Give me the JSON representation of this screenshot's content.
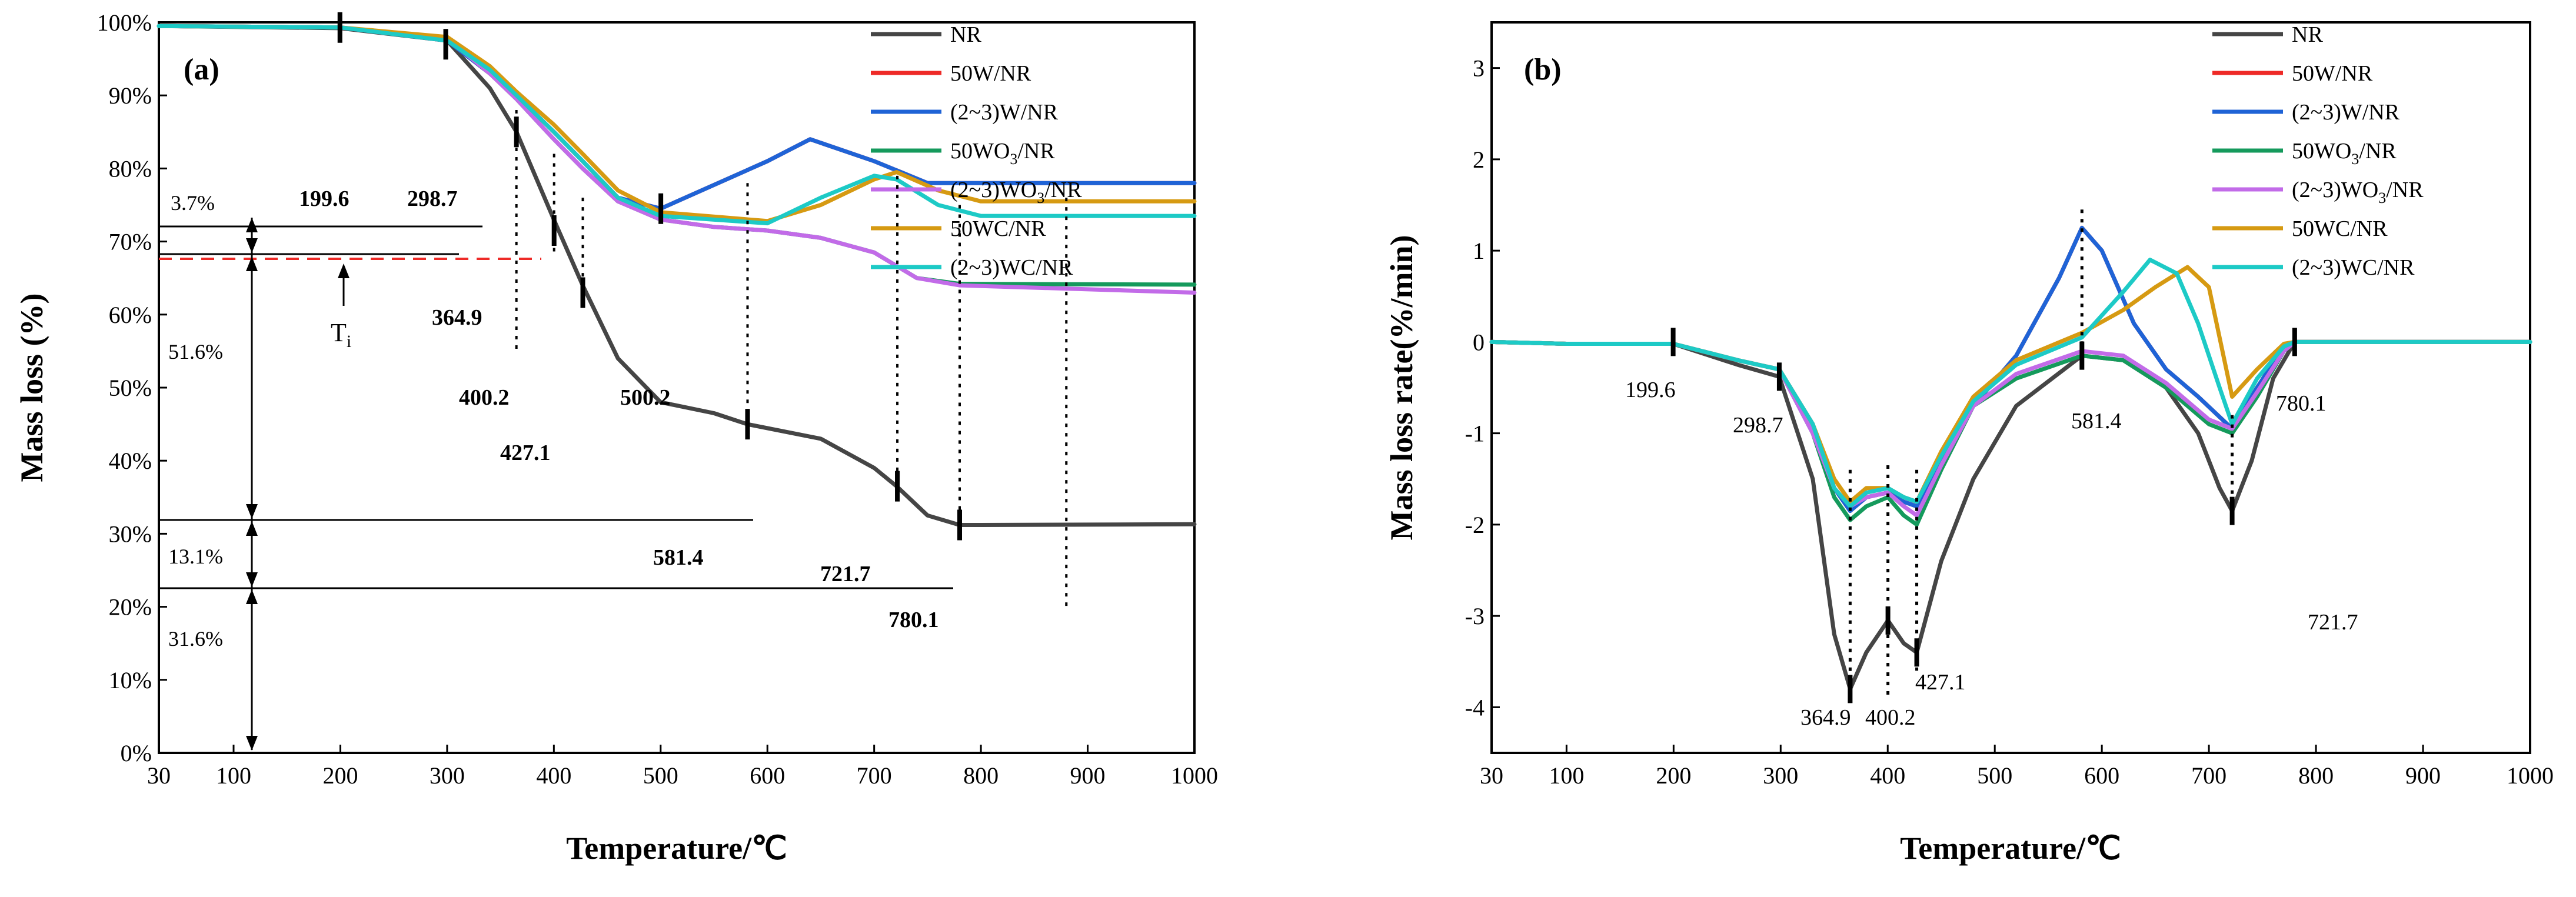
{
  "chart_data": [
    {
      "type": "line",
      "panel_label": "(a)",
      "xlabel": "Temperature/℃",
      "ylabel": "Mass loss (%)",
      "xlim": [
        30,
        1000
      ],
      "ylim": [
        0,
        100
      ],
      "x_ticks": [
        30,
        100,
        200,
        300,
        400,
        500,
        600,
        700,
        800,
        900,
        1000
      ],
      "y_ticks": [
        0,
        10,
        20,
        30,
        40,
        50,
        60,
        70,
        80,
        90,
        100
      ],
      "y_tick_labels": [
        "0%",
        "10%",
        "20%",
        "30%",
        "40%",
        "50%",
        "60%",
        "70%",
        "80%",
        "90%",
        "100%"
      ],
      "legend_position": "top-right",
      "series": [
        {
          "name": "NR",
          "color": "#454545",
          "x": [
            30,
            200,
            300,
            340,
            365,
            400,
            427,
            460,
            500,
            550,
            581,
            650,
            700,
            721,
            750,
            780,
            800,
            1000
          ],
          "values": [
            99.5,
            99.2,
            97.5,
            91,
            85,
            73,
            64,
            54,
            48,
            46.5,
            45,
            43,
            39,
            36.5,
            32.5,
            31.2,
            31.2,
            31.3
          ]
        },
        {
          "name": "50W/NR",
          "color": "#ee2a27",
          "x": [
            30,
            200,
            300,
            340,
            365,
            400,
            427,
            460,
            500,
            600,
            640,
            700,
            750,
            1000
          ],
          "values": [
            99.5,
            99.3,
            97.5,
            93,
            90,
            85,
            81,
            76,
            74.5,
            81,
            84,
            81,
            78,
            78
          ]
        },
        {
          "name": "(2~3)W/NR",
          "color": "#1f63d6",
          "x": [
            30,
            200,
            300,
            340,
            365,
            400,
            427,
            460,
            500,
            600,
            640,
            700,
            750,
            1000
          ],
          "values": [
            99.5,
            99.3,
            97.5,
            93,
            90,
            85,
            81,
            76,
            74.5,
            81,
            84,
            81,
            78,
            78
          ]
        },
        {
          "name": "50WO3/NR",
          "color": "#159a5c",
          "x": [
            30,
            200,
            300,
            340,
            365,
            400,
            427,
            460,
            500,
            550,
            600,
            650,
            700,
            740,
            780,
            1000
          ],
          "values": [
            99.5,
            99.3,
            97.8,
            93,
            89.5,
            84,
            80,
            75.5,
            73,
            72,
            71.5,
            70.5,
            68.5,
            65,
            64.2,
            64.1
          ]
        },
        {
          "name": "(2~3)WO3/NR",
          "color": "#c26be8",
          "x": [
            30,
            200,
            300,
            340,
            365,
            400,
            427,
            460,
            500,
            550,
            600,
            650,
            700,
            740,
            780,
            1000
          ],
          "values": [
            99.5,
            99.3,
            97.8,
            93,
            89.5,
            84,
            80,
            75.5,
            73,
            72,
            71.5,
            70.5,
            68.5,
            65,
            64,
            63
          ]
        },
        {
          "name": "50WC/NR",
          "color": "#d69a12",
          "x": [
            30,
            200,
            300,
            340,
            365,
            400,
            427,
            460,
            500,
            600,
            650,
            700,
            721,
            760,
            800,
            1000
          ],
          "values": [
            99.5,
            99.3,
            98,
            94,
            90.5,
            86,
            82,
            77,
            74,
            72.8,
            75,
            78.5,
            79.5,
            77,
            75.5,
            75.5
          ]
        },
        {
          "name": "(2~3)WC/NR",
          "color": "#1dcac6",
          "x": [
            30,
            200,
            300,
            340,
            365,
            400,
            427,
            460,
            500,
            600,
            650,
            700,
            721,
            760,
            800,
            1000
          ],
          "values": [
            99.5,
            99.3,
            97.5,
            93.5,
            90,
            85,
            81,
            76,
            73.5,
            72.5,
            76,
            79,
            78.5,
            75,
            73.5,
            73.5
          ]
        }
      ],
      "annotations": {
        "pct_37": "3.7%",
        "pct_516": "51.6%",
        "pct_131": "13.1%",
        "pct_316": "31.6%",
        "t_1996": "199.6",
        "t_2987": "298.7",
        "t_3649": "364.9",
        "t_4002": "400.2",
        "t_4271": "427.1",
        "t_5002": "500.2",
        "t_5814": "581.4",
        "t_7217": "721.7",
        "t_7801": "780.1",
        "ti_base": "T",
        "ti_sub": "i"
      }
    },
    {
      "type": "line",
      "panel_label": "(b)",
      "xlabel": "Temperature/℃",
      "ylabel": "Mass loss rate(%/min)",
      "xlim": [
        30,
        1000
      ],
      "ylim": [
        -4.5,
        3.5
      ],
      "x_ticks": [
        30,
        100,
        200,
        300,
        400,
        500,
        600,
        700,
        800,
        900,
        1000
      ],
      "y_ticks": [
        -4,
        -3,
        -2,
        -1,
        0,
        1,
        2,
        3
      ],
      "legend_position": "top-right",
      "series": [
        {
          "name": "NR",
          "color": "#454545",
          "x": [
            30,
            100,
            199.6,
            260,
            298.7,
            330,
            350,
            364.9,
            380,
            400.2,
            415,
            427.1,
            450,
            480,
            520,
            581.4,
            620,
            660,
            690,
            710,
            721.7,
            740,
            760,
            780.1,
            850,
            1000
          ],
          "values": [
            0,
            -0.02,
            -0.02,
            -0.25,
            -0.38,
            -1.5,
            -3.2,
            -3.8,
            -3.4,
            -3.05,
            -3.3,
            -3.4,
            -2.4,
            -1.5,
            -0.7,
            -0.15,
            -0.2,
            -0.5,
            -1.0,
            -1.6,
            -1.85,
            -1.3,
            -0.4,
            0,
            0,
            0
          ]
        },
        {
          "name": "50W/NR",
          "color": "#ee2a27",
          "x": [
            30,
            100,
            199.6,
            260,
            298.7,
            330,
            350,
            364.9,
            380,
            400.2,
            415,
            427.1,
            450,
            480,
            520,
            560,
            581.4,
            600,
            630,
            660,
            690,
            721.7,
            745,
            770,
            780.1,
            850,
            1000
          ],
          "values": [
            0,
            -0.02,
            -0.02,
            -0.2,
            -0.3,
            -0.9,
            -1.6,
            -1.85,
            -1.7,
            -1.65,
            -1.75,
            -1.8,
            -1.3,
            -0.7,
            -0.15,
            0.7,
            1.25,
            1.0,
            0.2,
            -0.3,
            -0.6,
            -0.95,
            -0.5,
            -0.05,
            0,
            0,
            0
          ]
        },
        {
          "name": "(2~3)W/NR",
          "color": "#1f63d6",
          "x": [
            30,
            100,
            199.6,
            260,
            298.7,
            330,
            350,
            364.9,
            380,
            400.2,
            415,
            427.1,
            450,
            480,
            520,
            560,
            581.4,
            600,
            630,
            660,
            690,
            721.7,
            745,
            770,
            780.1,
            850,
            1000
          ],
          "values": [
            0,
            -0.02,
            -0.02,
            -0.2,
            -0.3,
            -0.9,
            -1.6,
            -1.85,
            -1.7,
            -1.65,
            -1.75,
            -1.8,
            -1.3,
            -0.7,
            -0.15,
            0.7,
            1.25,
            1.0,
            0.2,
            -0.3,
            -0.6,
            -0.95,
            -0.5,
            -0.05,
            0,
            0,
            0
          ]
        },
        {
          "name": "50WO3/NR",
          "color": "#159a5c",
          "x": [
            30,
            100,
            199.6,
            260,
            298.7,
            330,
            350,
            364.9,
            380,
            400.2,
            415,
            427.1,
            450,
            480,
            520,
            581.4,
            620,
            660,
            700,
            721.7,
            745,
            770,
            780.1,
            850,
            1000
          ],
          "values": [
            0,
            -0.02,
            -0.02,
            -0.2,
            -0.3,
            -1.0,
            -1.7,
            -1.95,
            -1.8,
            -1.7,
            -1.9,
            -2.0,
            -1.4,
            -0.7,
            -0.4,
            -0.15,
            -0.2,
            -0.5,
            -0.9,
            -1.0,
            -0.6,
            -0.1,
            0,
            0,
            0
          ]
        },
        {
          "name": "(2~3)WO3/NR",
          "color": "#c26be8",
          "x": [
            30,
            100,
            199.6,
            260,
            298.7,
            330,
            350,
            364.9,
            380,
            400.2,
            415,
            427.1,
            450,
            480,
            520,
            581.4,
            620,
            660,
            700,
            721.7,
            745,
            770,
            780.1,
            850,
            1000
          ],
          "values": [
            0,
            -0.02,
            -0.02,
            -0.2,
            -0.3,
            -1.0,
            -1.6,
            -1.8,
            -1.7,
            -1.65,
            -1.8,
            -1.9,
            -1.35,
            -0.7,
            -0.35,
            -0.1,
            -0.15,
            -0.45,
            -0.85,
            -0.95,
            -0.55,
            -0.1,
            0,
            0,
            0
          ]
        },
        {
          "name": "50WC/NR",
          "color": "#d69a12",
          "x": [
            30,
            100,
            199.6,
            260,
            298.7,
            330,
            350,
            364.9,
            380,
            400.2,
            415,
            427.1,
            450,
            480,
            520,
            581.4,
            620,
            650,
            680,
            700,
            721.7,
            745,
            770,
            780.1,
            850,
            1000
          ],
          "values": [
            0,
            -0.02,
            -0.02,
            -0.2,
            -0.3,
            -0.9,
            -1.5,
            -1.75,
            -1.6,
            -1.6,
            -1.7,
            -1.75,
            -1.2,
            -0.6,
            -0.2,
            0.1,
            0.35,
            0.6,
            0.82,
            0.6,
            -0.6,
            -0.3,
            -0.02,
            0,
            0,
            0
          ]
        },
        {
          "name": "(2~3)WC/NR",
          "color": "#1dcac6",
          "x": [
            30,
            100,
            199.6,
            260,
            298.7,
            330,
            350,
            364.9,
            380,
            400.2,
            415,
            427.1,
            450,
            480,
            520,
            581.4,
            620,
            645,
            670,
            690,
            710,
            721.7,
            745,
            770,
            780.1,
            850,
            1000
          ],
          "values": [
            0,
            -0.02,
            -0.02,
            -0.2,
            -0.3,
            -0.9,
            -1.6,
            -1.8,
            -1.65,
            -1.6,
            -1.7,
            -1.75,
            -1.25,
            -0.65,
            -0.25,
            0.05,
            0.55,
            0.9,
            0.75,
            0.2,
            -0.5,
            -0.9,
            -0.4,
            -0.05,
            0,
            0,
            0
          ]
        }
      ],
      "annotations": {
        "t_1996": "199.6",
        "t_2987": "298.7",
        "t_3649": "364.9",
        "t_4002": "400.2",
        "t_4271": "427.1",
        "t_5814": "581.4",
        "t_7217": "721.7",
        "t_7801": "780.1"
      }
    }
  ],
  "legend_sub_3": "3"
}
